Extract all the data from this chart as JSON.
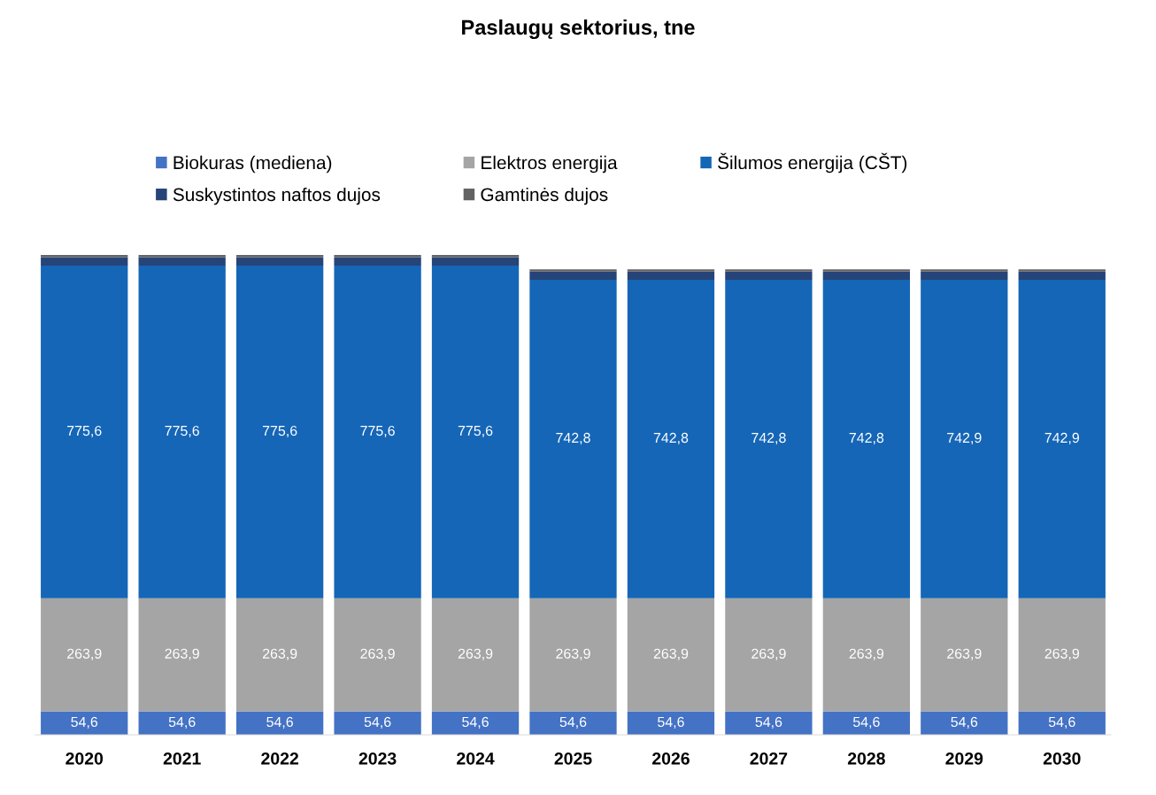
{
  "chart_data": {
    "type": "bar",
    "title": "Paslaugų sektorius, tne",
    "stacked": true,
    "legend": "top",
    "grid": false,
    "categories": [
      "2020",
      "2021",
      "2022",
      "2023",
      "2024",
      "2025",
      "2026",
      "2027",
      "2028",
      "2029",
      "2030"
    ],
    "series": [
      {
        "name": "Biokuras (mediena)",
        "color": "#4472c4",
        "values": [
          54.6,
          54.6,
          54.6,
          54.6,
          54.6,
          54.6,
          54.6,
          54.6,
          54.6,
          54.6,
          54.6
        ],
        "value_labels": [
          "54,6",
          "54,6",
          "54,6",
          "54,6",
          "54,6",
          "54,6",
          "54,6",
          "54,6",
          "54,6",
          "54,6",
          "54,6"
        ]
      },
      {
        "name": "Elektros energija",
        "color": "#a5a5a5",
        "values": [
          263.9,
          263.9,
          263.9,
          263.9,
          263.9,
          263.9,
          263.9,
          263.9,
          263.9,
          263.9,
          263.9
        ],
        "value_labels": [
          "263,9",
          "263,9",
          "263,9",
          "263,9",
          "263,9",
          "263,9",
          "263,9",
          "263,9",
          "263,9",
          "263,9",
          "263,9"
        ]
      },
      {
        "name": "Šilumos energija (CŠT)",
        "color": "#1566b7",
        "values": [
          775.6,
          775.6,
          775.6,
          775.6,
          775.6,
          742.8,
          742.8,
          742.8,
          742.8,
          742.9,
          742.9
        ],
        "value_labels": [
          "775,6",
          "775,6",
          "775,6",
          "775,6",
          "775,6",
          "742,8",
          "742,8",
          "742,8",
          "742,8",
          "742,9",
          "742,9"
        ]
      },
      {
        "name": "Suskystintos naftos dujos",
        "color": "#264478",
        "values": [
          20,
          20,
          20,
          20,
          20,
          19,
          19,
          19,
          19,
          19,
          19
        ],
        "value_labels": [
          null,
          null,
          null,
          null,
          null,
          null,
          null,
          null,
          null,
          null,
          null
        ]
      },
      {
        "name": "Gamtinės dujos",
        "color": "#636363",
        "values": [
          5,
          5,
          5,
          5,
          5,
          5,
          5,
          5,
          5,
          5,
          5
        ],
        "value_labels": [
          null,
          null,
          null,
          null,
          null,
          null,
          null,
          null,
          null,
          null,
          null
        ]
      }
    ]
  }
}
